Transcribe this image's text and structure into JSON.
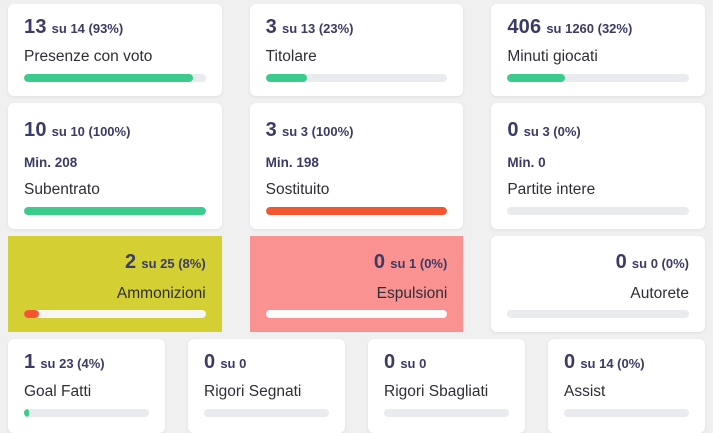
{
  "page": {
    "background": "#f0f0f1",
    "accent_green": "#3bcb8d",
    "accent_orange": "#f4572f",
    "text_navy": "#3b3b64",
    "yellow_card_bg": "#d4cf32",
    "red_card_bg": "#fa9292"
  },
  "rows": [
    {
      "cards": [
        {
          "value": "13",
          "rest": "su 14 (93%)",
          "label": "Presenze con voto",
          "bg": "#ffffff",
          "bar": {
            "width": "93%",
            "fill": "#3bcb8d",
            "track": "#e9ebee"
          }
        },
        {
          "value": "3",
          "rest": "su 13 (23%)",
          "label": "Titolare",
          "bg": "#ffffff",
          "bar": {
            "width": "23%",
            "fill": "#3bcb8d",
            "track": "#e9ebee"
          }
        },
        {
          "value": "406",
          "rest": "su 1260 (32%)",
          "label": "Minuti giocati",
          "bg": "#ffffff",
          "bar": {
            "width": "32%",
            "fill": "#3bcb8d",
            "track": "#e9ebee"
          }
        }
      ]
    },
    {
      "cards": [
        {
          "value": "10",
          "rest": "su 10 (100%)",
          "min": "Min. 208",
          "label": "Subentrato",
          "bg": "#ffffff",
          "bar": {
            "width": "100%",
            "fill": "#3bcb8d",
            "track": "#e9ebee"
          }
        },
        {
          "value": "3",
          "rest": "su 3 (100%)",
          "min": "Min. 198",
          "label": "Sostituito",
          "bg": "#ffffff",
          "bar": {
            "width": "100%",
            "fill": "#f4572f",
            "track": "#e9ebee"
          }
        },
        {
          "value": "0",
          "rest": "su 3 (0%)",
          "min": "Min. 0",
          "label": "Partite intere",
          "bg": "#ffffff",
          "bar": {
            "width": "0%",
            "fill": "#3bcb8d",
            "track": "#e9ebee"
          }
        }
      ]
    },
    {
      "cards": [
        {
          "value": "2",
          "rest": "su 25 (8%)",
          "label": "Ammonizioni",
          "bg": "#d4cf32",
          "bar": {
            "width": "8%",
            "fill": "#f4572f",
            "track": "#f6f6f2"
          }
        },
        {
          "value": "0",
          "rest": "su 1 (0%)",
          "label": "Espulsioni",
          "bg": "#fa9292",
          "bar": {
            "width": "0%",
            "fill": "#f4572f",
            "track": "#fcfcfc"
          }
        },
        {
          "value": "0",
          "rest": "su 0 (0%)",
          "label": "Autorete",
          "bg": "#ffffff",
          "bar": {
            "width": "0%",
            "fill": "#3bcb8d",
            "track": "#e9ebee"
          }
        }
      ]
    },
    {
      "cards": [
        {
          "value": "1",
          "rest": "su 23 (4%)",
          "label": "Goal Fatti",
          "bg": "#ffffff",
          "bar": {
            "width": "4%",
            "fill": "#3bcb8d",
            "track": "#e9ebee"
          }
        },
        {
          "value": "0",
          "rest": "su 0",
          "label": "Rigori Segnati",
          "bg": "#ffffff",
          "bar": {
            "width": "0%",
            "fill": "#3bcb8d",
            "track": "#e9ebee"
          }
        },
        {
          "value": "0",
          "rest": "su 0",
          "label": "Rigori Sbagliati",
          "bg": "#ffffff",
          "bar": {
            "width": "0%",
            "fill": "#3bcb8d",
            "track": "#e9ebee"
          }
        },
        {
          "value": "0",
          "rest": "su 14 (0%)",
          "label": "Assist",
          "bg": "#ffffff",
          "bar": {
            "width": "0%",
            "fill": "#3bcb8d",
            "track": "#e9ebee"
          }
        }
      ]
    }
  ]
}
